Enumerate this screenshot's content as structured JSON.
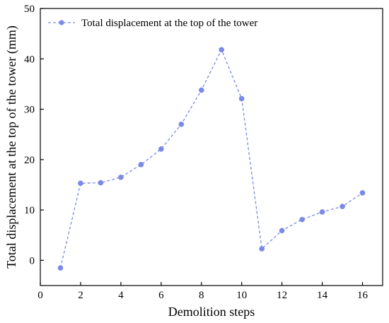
{
  "chart_data": {
    "type": "line",
    "title": "",
    "xlabel": "Demolition steps",
    "ylabel": "Total displacement at the top of the tower (mm)",
    "xlim": [
      0,
      17
    ],
    "ylim": [
      -5,
      50
    ],
    "x_ticks": [
      "0",
      "2",
      "4",
      "6",
      "8",
      "10",
      "12",
      "14",
      "16"
    ],
    "y_ticks": [
      "0",
      "10",
      "20",
      "30",
      "40",
      "50"
    ],
    "grid": false,
    "legend_position": "top-left",
    "series": [
      {
        "name": "Total displacement at the top of the tower",
        "color": "#7b8ae6",
        "line_style": "dashed",
        "marker": "circle",
        "x": [
          1,
          2,
          3,
          4,
          5,
          6,
          7,
          8,
          9,
          10,
          11,
          12,
          13,
          14,
          15,
          16
        ],
        "y": [
          -1.5,
          15.3,
          15.4,
          16.5,
          19.0,
          22.1,
          27.0,
          33.8,
          41.8,
          32.1,
          2.3,
          5.9,
          8.1,
          9.6,
          10.7,
          13.4
        ]
      }
    ]
  }
}
